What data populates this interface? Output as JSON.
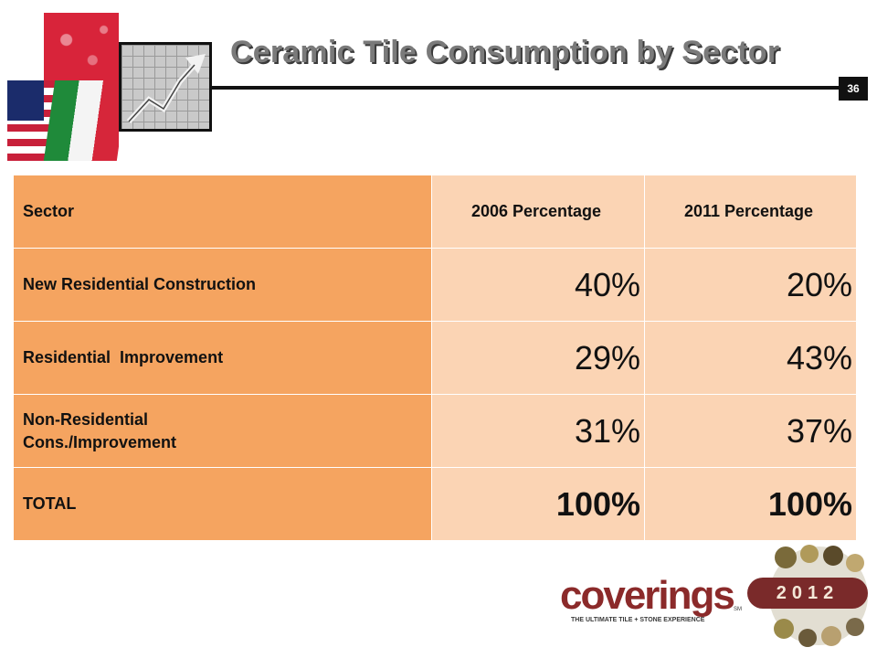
{
  "header": {
    "title": "Ceramic Tile Consumption by Sector",
    "page_number": "36"
  },
  "table": {
    "columns": [
      "Sector",
      "2006 Percentage",
      "2011 Percentage"
    ],
    "rows": [
      {
        "sector_lines": [
          "New Residential Construction"
        ],
        "v2006": "40%",
        "v2011": "20%"
      },
      {
        "sector_lines": [
          "Residential  Improvement"
        ],
        "v2006": "29%",
        "v2011": "43%"
      },
      {
        "sector_lines": [
          "Non-Residential",
          "Cons./Improvement"
        ],
        "v2006": "31%",
        "v2011": "37%"
      },
      {
        "sector_lines": [
          "TOTAL"
        ],
        "v2006": "100%",
        "v2011": "100%"
      }
    ]
  },
  "footer": {
    "logo_word": "coverings",
    "logo_tagline": "THE ULTIMATE TILE + STONE EXPERIENCE",
    "logo_mark": "SM",
    "year": "2012"
  },
  "colors": {
    "sector_fill": "#f5a460",
    "value_fill": "#fbd4b4",
    "brand": "#8b2a2a"
  }
}
